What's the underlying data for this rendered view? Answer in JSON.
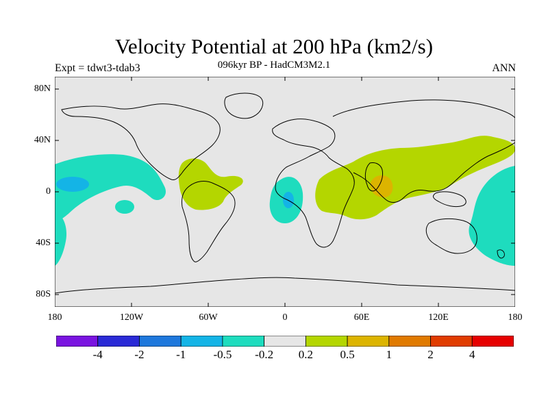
{
  "title": "Velocity Potential at 200 hPa (km2/s)",
  "subtitle": "096kyr BP - HadCM3M2.1",
  "left_label": "Expt = tdwt3-tdab3",
  "right_label": "ANN",
  "map": {
    "projection": "cylindrical-equidistant",
    "background_color": "#e6e6e6",
    "lat_ticks": [
      "80N",
      "40N",
      "0",
      "40S",
      "80S"
    ],
    "lon_ticks": [
      "180",
      "120W",
      "60W",
      "0",
      "60E",
      "120E",
      "180"
    ]
  },
  "legend": {
    "colors": [
      "#7a14e0",
      "#2a2ad6",
      "#1e78dc",
      "#14b4e6",
      "#1edcbe",
      "#e6e6e6",
      "#b4d600",
      "#dcb400",
      "#e07a00",
      "#e03c00",
      "#e60000"
    ],
    "labels": [
      "-4",
      "-2",
      "-1",
      "-0.5",
      "-0.2",
      "0.2",
      "0.5",
      "1",
      "2",
      "4"
    ]
  }
}
